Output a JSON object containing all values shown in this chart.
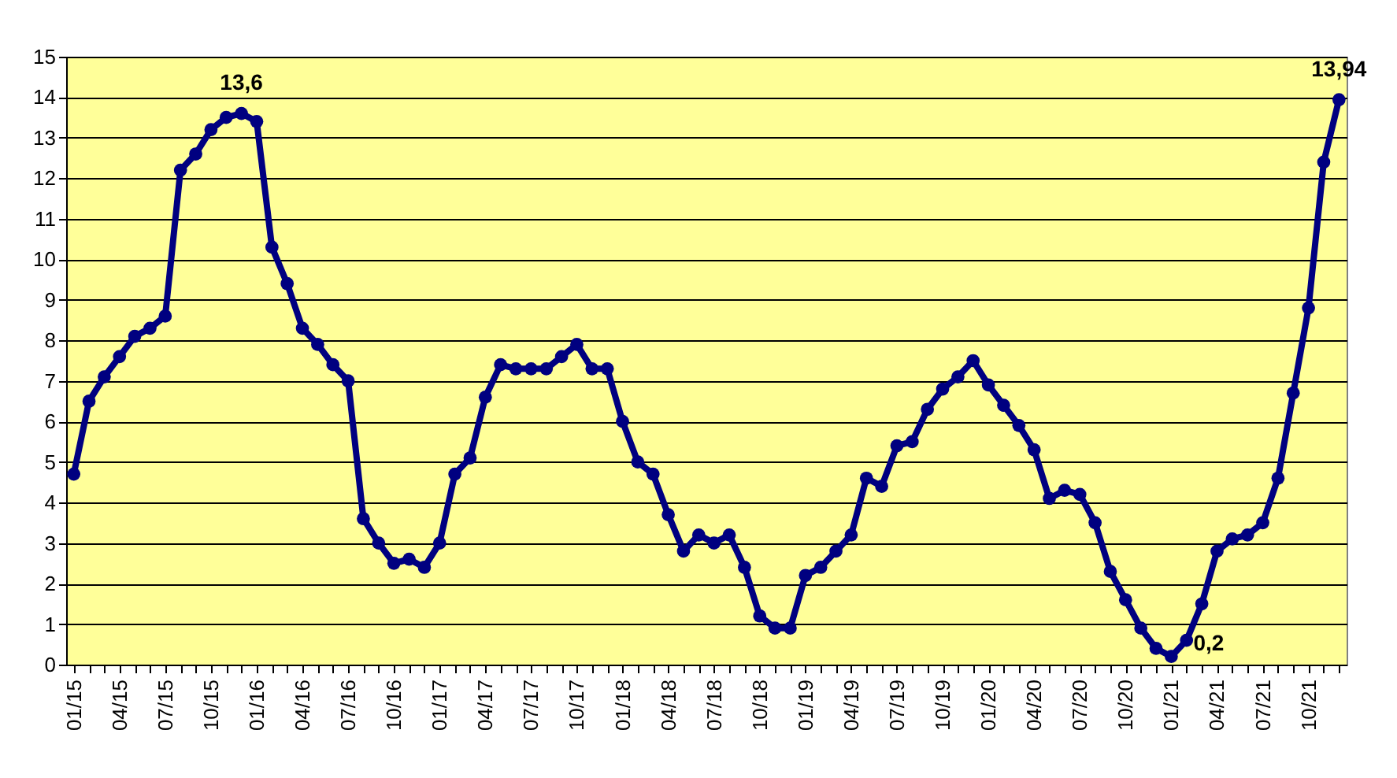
{
  "chart_data": {
    "type": "line",
    "categories": [
      "01/15",
      null,
      null,
      "04/15",
      null,
      null,
      "07/15",
      null,
      null,
      "10/15",
      null,
      null,
      "01/16",
      null,
      null,
      "04/16",
      null,
      null,
      "07/16",
      null,
      null,
      "10/16",
      null,
      null,
      "01/17",
      null,
      null,
      "04/17",
      null,
      null,
      "07/17",
      null,
      null,
      "10/17",
      null,
      null,
      "01/18",
      null,
      null,
      "04/18",
      null,
      null,
      "07/18",
      null,
      null,
      "10/18",
      null,
      null,
      "01/19",
      null,
      null,
      "04/19",
      null,
      null,
      "07/19",
      null,
      null,
      "10/19",
      null,
      null,
      "01/20",
      null,
      null,
      "04/20",
      null,
      null,
      "07/20",
      null,
      null,
      "10/20",
      null,
      null,
      "01/21",
      null,
      null,
      "04/21",
      null,
      null,
      "07/21",
      null,
      null,
      "10/21",
      null,
      null
    ],
    "series": [
      {
        "color": "#000080",
        "values": [
          4.7,
          6.5,
          7.1,
          7.6,
          8.1,
          8.3,
          8.6,
          12.2,
          12.6,
          13.2,
          13.5,
          13.6,
          13.4,
          10.3,
          9.4,
          8.3,
          7.9,
          7.4,
          7.0,
          3.6,
          3.0,
          2.5,
          2.6,
          2.4,
          3.0,
          4.7,
          5.1,
          6.6,
          7.4,
          7.3,
          7.3,
          7.3,
          7.6,
          7.9,
          7.3,
          7.3,
          6.0,
          5.0,
          4.7,
          3.7,
          2.8,
          3.2,
          3.0,
          3.2,
          2.4,
          1.2,
          0.9,
          0.9,
          2.2,
          2.4,
          2.8,
          3.2,
          4.6,
          4.4,
          5.4,
          5.5,
          6.3,
          6.8,
          7.1,
          7.5,
          6.9,
          6.4,
          5.9,
          5.3,
          4.1,
          4.3,
          4.2,
          3.5,
          2.3,
          1.6,
          0.9,
          0.4,
          0.2,
          0.6,
          1.5,
          2.8,
          3.1,
          3.2,
          3.5,
          4.6,
          6.7,
          8.8,
          12.4,
          13.94
        ],
        "value_labels": [
          null,
          null,
          null,
          null,
          null,
          null,
          null,
          null,
          null,
          null,
          null,
          "13,6",
          null,
          null,
          null,
          null,
          null,
          null,
          null,
          null,
          null,
          null,
          null,
          null,
          null,
          null,
          null,
          null,
          null,
          null,
          null,
          null,
          null,
          null,
          null,
          null,
          null,
          null,
          null,
          null,
          null,
          null,
          null,
          null,
          null,
          null,
          null,
          null,
          null,
          null,
          null,
          null,
          null,
          null,
          null,
          null,
          null,
          null,
          null,
          null,
          null,
          null,
          null,
          null,
          null,
          null,
          null,
          null,
          null,
          null,
          null,
          null,
          "0,2",
          null,
          null,
          null,
          null,
          null,
          null,
          null,
          null,
          null,
          null,
          "13,94"
        ]
      }
    ],
    "ylim": [
      0,
      15
    ],
    "yticks": [
      0,
      1,
      2,
      3,
      4,
      5,
      6,
      7,
      8,
      9,
      10,
      11,
      12,
      13,
      14,
      15
    ],
    "grid": "y",
    "marker": "circle",
    "line_style": "solid"
  }
}
